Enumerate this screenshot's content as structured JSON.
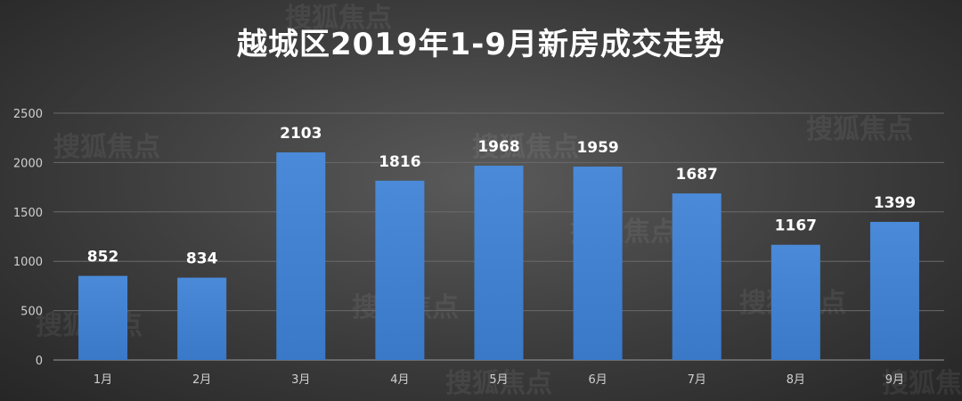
{
  "watermark_text": "搜狐焦点",
  "chart_data": {
    "type": "bar",
    "title": "越城区2019年1-9月新房成交走势",
    "categories": [
      "1月",
      "2月",
      "3月",
      "4月",
      "5月",
      "6月",
      "7月",
      "8月",
      "9月"
    ],
    "values": [
      852,
      834,
      2103,
      1816,
      1968,
      1959,
      1687,
      1167,
      1399
    ],
    "ylim": [
      0,
      2500
    ],
    "yticks": [
      0,
      500,
      1000,
      1500,
      2000,
      2500
    ],
    "grid": true,
    "bar_color": "#3a78c8",
    "bar_color_light": "#4a8ad8"
  }
}
